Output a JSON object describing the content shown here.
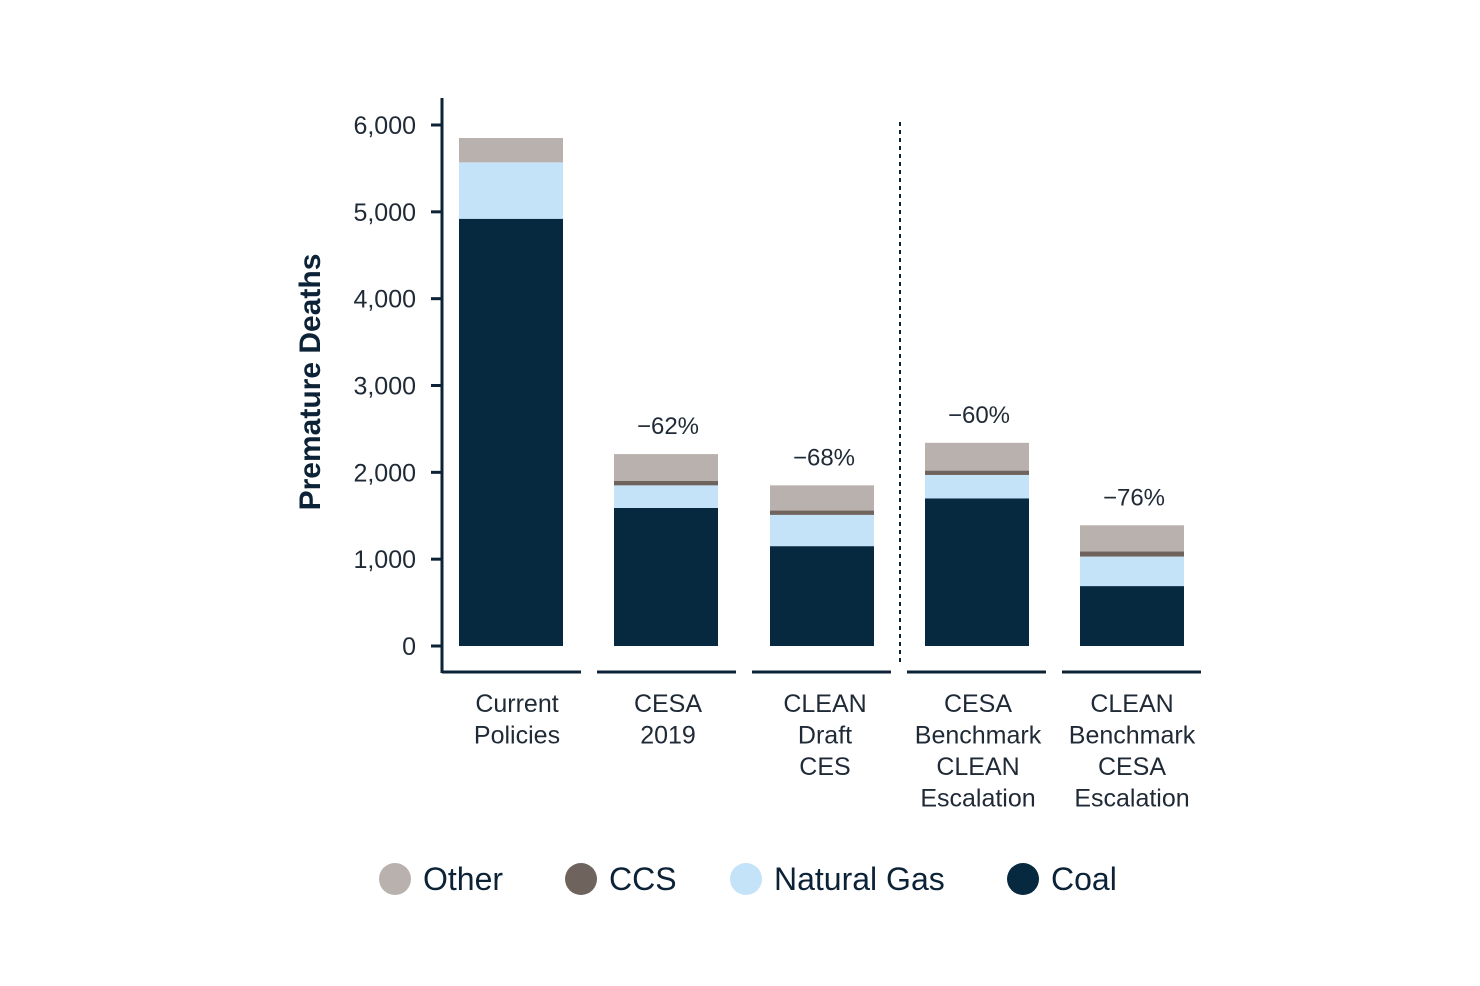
{
  "chart_data": {
    "type": "bar",
    "stacked": true,
    "ylabel": "Premature Deaths",
    "ylim": [
      0,
      6000
    ],
    "yticks": [
      0,
      1000,
      2000,
      3000,
      4000,
      5000,
      6000
    ],
    "ytick_labels": [
      "0",
      "1,000",
      "2,000",
      "3,000",
      "4,000",
      "5,000",
      "6,000"
    ],
    "categories": [
      [
        "Current",
        "Policies"
      ],
      [
        "CESA",
        "2019"
      ],
      [
        "CLEAN",
        "Draft",
        "CES"
      ],
      [
        "CESA",
        "Benchmark",
        "CLEAN",
        "Escalation"
      ],
      [
        "CLEAN",
        "Benchmark",
        "CESA",
        "Escalation"
      ]
    ],
    "series": [
      {
        "name": "Coal",
        "color": "#06293f",
        "values": [
          4920,
          1590,
          1150,
          1700,
          690
        ]
      },
      {
        "name": "Natural Gas",
        "color": "#c4e2f8",
        "values": [
          650,
          260,
          360,
          270,
          340
        ]
      },
      {
        "name": "CCS",
        "color": "#6f635d",
        "values": [
          0,
          50,
          50,
          50,
          60
        ]
      },
      {
        "name": "Other",
        "color": "#b9b1ae",
        "values": [
          280,
          310,
          290,
          320,
          300
        ]
      }
    ],
    "annotations": [
      "",
      "−62%",
      "−68%",
      "−60%",
      "−76%"
    ],
    "legend": {
      "placement": "bottom",
      "order": [
        "Other",
        "CCS",
        "Natural Gas",
        "Coal"
      ]
    },
    "divider": {
      "between": [
        2,
        3
      ],
      "style": "dotted"
    },
    "grid": false
  }
}
